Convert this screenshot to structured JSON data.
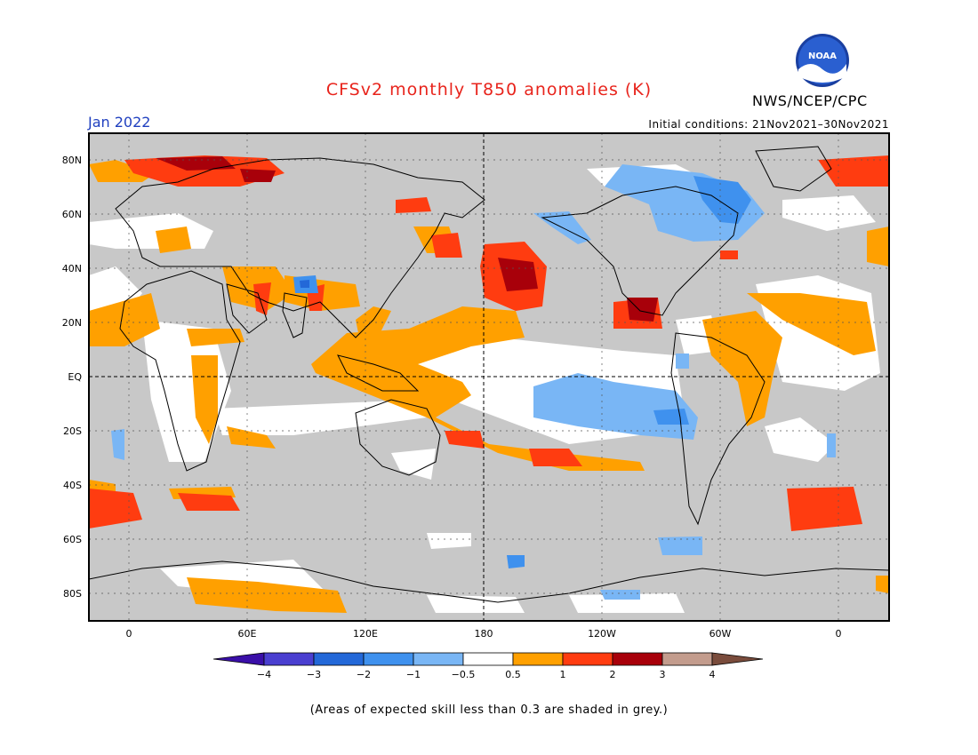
{
  "header": {
    "title": "CFSv2 monthly T850 anomalies (K)",
    "agency": "NWS/NCEP/CPC",
    "logo_text": "NOAA",
    "period": "Jan 2022",
    "initial_conditions": "Initial conditions: 21Nov2021–30Nov2021"
  },
  "axes": {
    "lat_labels": [
      "80N",
      "60N",
      "40N",
      "20N",
      "EQ",
      "20S",
      "40S",
      "60S",
      "80S"
    ],
    "lon_labels": [
      "0",
      "60E",
      "120E",
      "180",
      "120W",
      "60W",
      "0"
    ]
  },
  "legend": {
    "labels": [
      "−4",
      "−3",
      "−2",
      "−1",
      "−0.5",
      "0.5",
      "1",
      "2",
      "3",
      "4"
    ],
    "colors": [
      "#3a0fa8",
      "#4a3fd0",
      "#2368d8",
      "#3f91ee",
      "#79b6f5",
      "#ffffff",
      "#ffa000",
      "#ff3c10",
      "#a8000a",
      "#c39c8d",
      "#7a4c3c"
    ]
  },
  "footnote": "(Areas of expected skill less than 0.3 are shaded in grey.)",
  "colors": {
    "grey_mask": "#c8c8c8",
    "title_red": "#e8241c",
    "period_blue": "#1f3fbf"
  }
}
